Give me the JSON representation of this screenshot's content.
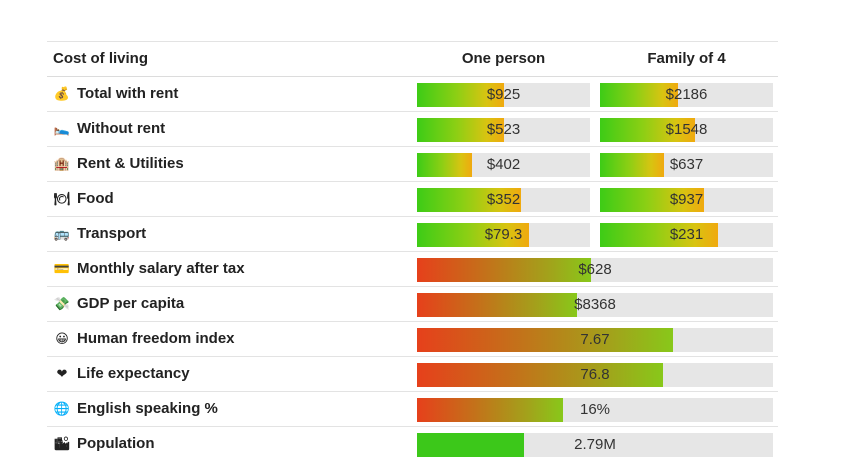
{
  "table": {
    "header": {
      "category": "Cost of living",
      "one_person": "One person",
      "family": "Family of 4"
    },
    "cost_rows": [
      {
        "icon": "money-bag-icon",
        "glyph": "💰",
        "label": "Total with rent",
        "one_person": "$925",
        "one_person_fill": 0.5,
        "family": "$2186",
        "family_fill": 0.45
      },
      {
        "icon": "sleeping-bed-icon",
        "glyph": "🛌",
        "label": "Without rent",
        "one_person": "$523",
        "one_person_fill": 0.5,
        "family": "$1548",
        "family_fill": 0.55
      },
      {
        "icon": "building-icon",
        "glyph": "🏨",
        "label": "Rent & Utilities",
        "one_person": "$402",
        "one_person_fill": 0.32,
        "family": "$637",
        "family_fill": 0.37
      },
      {
        "icon": "plate-icon",
        "glyph": "🍽",
        "label": "Food",
        "one_person": "$352",
        "one_person_fill": 0.6,
        "family": "$937",
        "family_fill": 0.6
      },
      {
        "icon": "bus-icon",
        "glyph": "🚌",
        "label": "Transport",
        "one_person": "$79.3",
        "one_person_fill": 0.65,
        "family": "$231",
        "family_fill": 0.68
      }
    ],
    "stat_rows": [
      {
        "icon": "credit-card-icon",
        "glyph": "💳",
        "label": "Monthly salary after tax",
        "value": "$628",
        "fill": 0.49,
        "style": "sal"
      },
      {
        "icon": "money-with-wings-icon",
        "glyph": "💸",
        "label": "GDP per capita",
        "value": "$8368",
        "fill": 0.45,
        "style": "sal"
      },
      {
        "icon": "grinning-face-icon",
        "glyph": "😀",
        "label": "Human freedom index",
        "value": "7.67",
        "fill": 0.72,
        "style": "sal"
      },
      {
        "icon": "heart-icon",
        "glyph": "❤",
        "label": "Life expectancy",
        "value": "76.8",
        "fill": 0.69,
        "style": "sal"
      },
      {
        "icon": "globe-icon",
        "glyph": "🌐",
        "label": "English speaking %",
        "value": "16%",
        "fill": 0.41,
        "style": "sal"
      },
      {
        "icon": "city-map-icon",
        "glyph": "🏙",
        "label": "Population",
        "value": "2.79M",
        "fill": 0.3,
        "style": "flat"
      }
    ]
  },
  "colors": {
    "bar_track": "#e6e6e6",
    "cost_gradient": [
      "#3dcc16",
      "#f0a90f"
    ],
    "stat_gradient": [
      "#e6401b",
      "#88c81a"
    ],
    "population_fill": "#3cc81a"
  }
}
